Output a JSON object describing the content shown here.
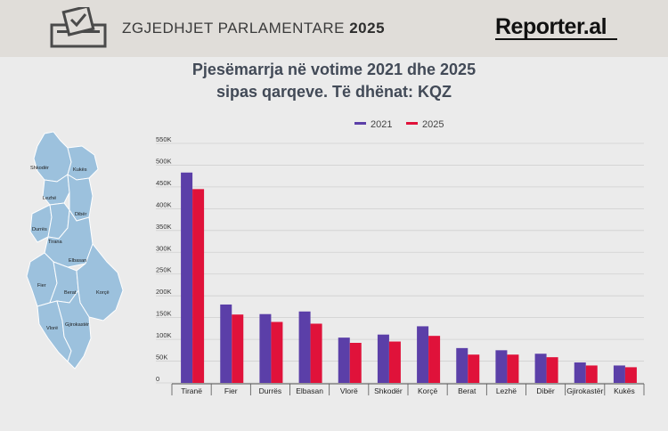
{
  "header": {
    "title_prefix": "ZGJEDHJET PARLAMENTARE",
    "title_year": "2025",
    "logo_text": "Reporter.al",
    "ballot_icon": "ballot-box-icon"
  },
  "colors": {
    "series_2021": "#5b3fa8",
    "series_2025": "#e0123a",
    "map_fill": "#9cc1dd",
    "map_stroke": "#ffffff"
  },
  "map": {
    "regions": [
      "Shkodër",
      "Kukës",
      "Lezhë",
      "Dibër",
      "Durrës",
      "Tirana",
      "Elbasan",
      "Fier",
      "Berat",
      "Korçë",
      "Vlorë",
      "Gjirokastër"
    ]
  },
  "chart_data": {
    "type": "bar",
    "title_line1": "Pjesëmarrja në votime 2021 dhe 2025",
    "title_line2": "sipas qarqeve. Të dhënat: KQZ",
    "categories": [
      "Tiranë",
      "Fier",
      "Durrës",
      "Elbasan",
      "Vlorë",
      "Shkodër",
      "Korçë",
      "Berat",
      "Lezhë",
      "Dibër",
      "Gjirokastër",
      "Kukës"
    ],
    "series": [
      {
        "name": "2021",
        "values": [
          483000,
          180000,
          158000,
          164000,
          104000,
          111000,
          130000,
          80000,
          75000,
          67000,
          47000,
          40000
        ]
      },
      {
        "name": "2025",
        "values": [
          445000,
          157000,
          140000,
          136000,
          92000,
          95000,
          108000,
          65000,
          65000,
          59000,
          40000,
          36000
        ]
      }
    ],
    "ylim": [
      0,
      550000
    ],
    "yticks": [
      0,
      50000,
      100000,
      150000,
      200000,
      250000,
      300000,
      350000,
      400000,
      450000,
      500000,
      550000
    ],
    "ytick_labels": [
      "0",
      "50K",
      "100K",
      "150K",
      "200K",
      "250K",
      "300K",
      "350K",
      "400K",
      "450K",
      "500K",
      "550K"
    ],
    "grid": true,
    "legend_position": "top-center"
  }
}
